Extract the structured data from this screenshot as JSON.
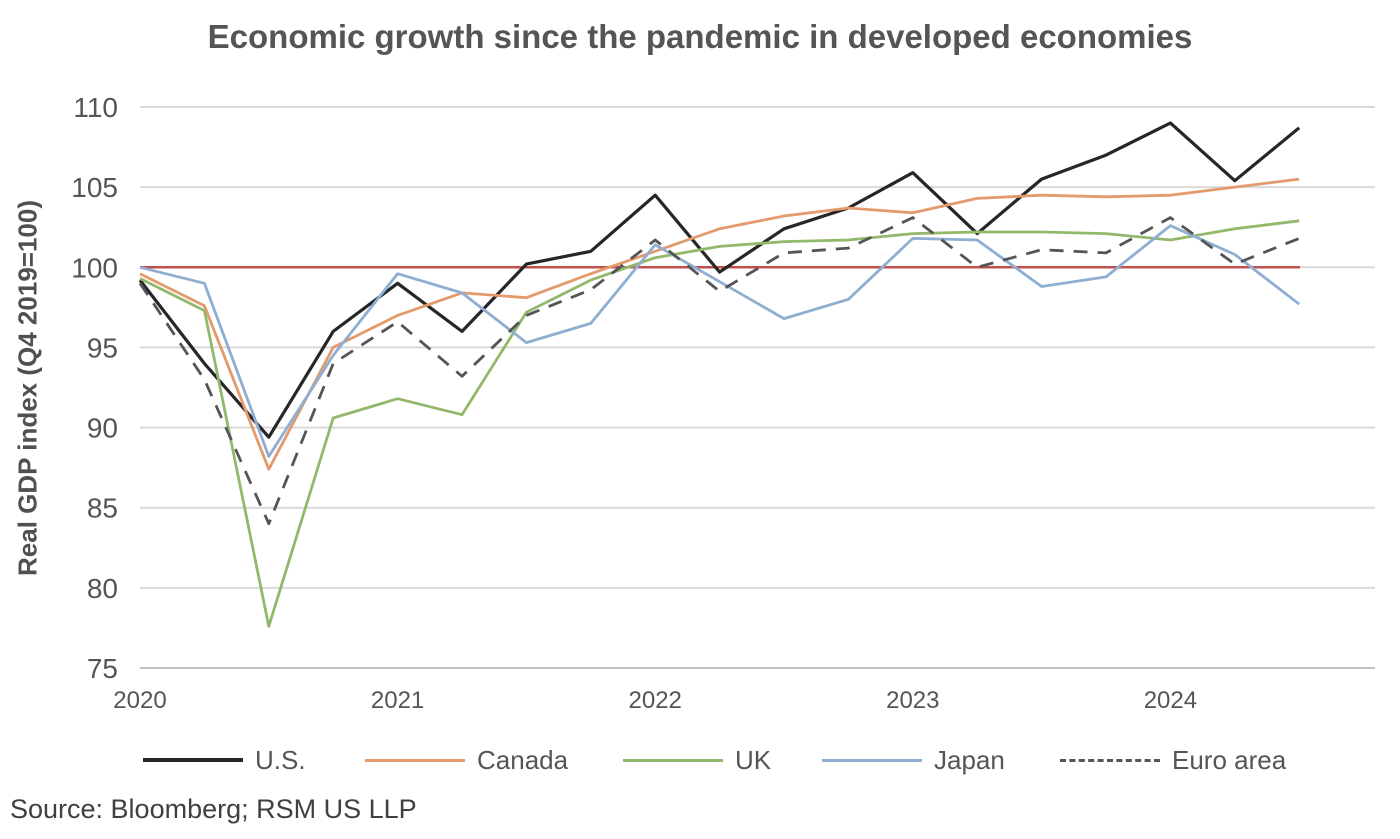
{
  "chart_data": {
    "type": "line",
    "title": "Economic growth since the pandemic in developed economies",
    "xlabel": "",
    "ylabel": "Real GDP index (Q4 2019=100)",
    "ylim": [
      75,
      110
    ],
    "yticks": [
      "75",
      "80",
      "85",
      "90",
      "95",
      "100",
      "105",
      "110"
    ],
    "xticks": [
      {
        "label": "2020",
        "q": 0
      },
      {
        "label": "2021",
        "q": 4
      },
      {
        "label": "2022",
        "q": 8
      },
      {
        "label": "2023",
        "q": 12
      },
      {
        "label": "2024",
        "q": 16
      }
    ],
    "reference_line": {
      "value": 100,
      "color": "#c0504d"
    },
    "x": [
      0,
      1,
      2,
      3,
      4,
      5,
      6,
      7,
      8,
      9,
      10,
      11,
      12,
      13,
      14,
      15,
      16,
      17,
      18
    ],
    "series": [
      {
        "name": "U.S.",
        "color": "#262626",
        "dash": false,
        "values": [
          99.2,
          94.0,
          89.4,
          96.0,
          99.0,
          96.0,
          100.2,
          101.0,
          104.5,
          99.7,
          102.4,
          103.7,
          105.9,
          102.1,
          105.5,
          107.0,
          109.0,
          105.4,
          108.7
        ]
      },
      {
        "name": "Canada",
        "color": "#e39a6c",
        "dash": false,
        "values": [
          99.6,
          97.6,
          87.4,
          95.0,
          97.0,
          98.4,
          98.1,
          99.6,
          101.0,
          102.4,
          103.2,
          103.7,
          103.4,
          104.3,
          104.5,
          104.4,
          104.5,
          105.0,
          105.5
        ]
      },
      {
        "name": "UK",
        "color": "#92b86b",
        "dash": false,
        "values": [
          99.3,
          97.3,
          77.6,
          90.6,
          91.8,
          90.8,
          97.2,
          99.2,
          100.6,
          101.3,
          101.6,
          101.7,
          102.1,
          102.2,
          102.2,
          102.1,
          101.7,
          102.4,
          102.9
        ]
      },
      {
        "name": "Japan",
        "color": "#8eaed2",
        "dash": false,
        "values": [
          100.0,
          99.0,
          88.2,
          94.5,
          99.6,
          98.4,
          95.3,
          96.5,
          101.4,
          99.1,
          96.8,
          98.0,
          101.8,
          101.7,
          98.8,
          99.4,
          102.6,
          100.8,
          97.7
        ]
      },
      {
        "name": "Euro area",
        "color": "#555555",
        "dash": true,
        "values": [
          99.0,
          93.0,
          84.0,
          94.0,
          96.6,
          93.2,
          97.0,
          98.6,
          101.7,
          98.5,
          100.9,
          101.2,
          103.1,
          100.0,
          101.1,
          100.9,
          103.1,
          100.2,
          101.8
        ]
      }
    ]
  },
  "source": "Source: Bloomberg; RSM US LLP"
}
